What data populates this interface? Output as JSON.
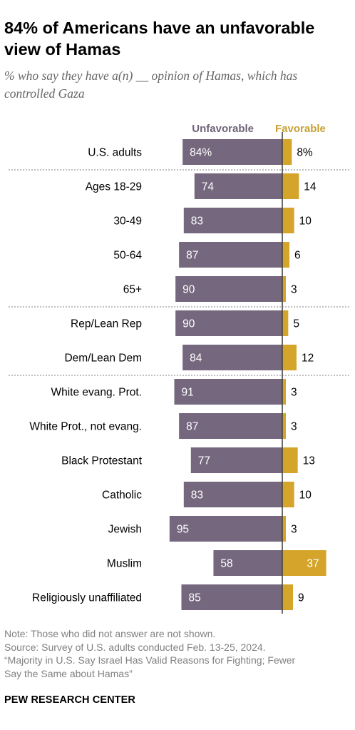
{
  "header": {
    "title": "84% of Americans have an unfavorable view of Hamas",
    "subtitle": "% who say they have a(n) __ opinion of Hamas, which has controlled Gaza"
  },
  "colors": {
    "unfavorable": "#75687e",
    "favorable": "#d4a42b",
    "favorable_header": "#c9a033",
    "unfavorable_header": "#6e6378",
    "axis": "#444444",
    "separator": "#9a9a9a"
  },
  "chart_data": {
    "type": "bar",
    "orientation": "horizontal-diverging",
    "series_headers": {
      "unfavorable": "Unfavorable",
      "favorable": "Favorable"
    },
    "groups": [
      [
        "U.S. adults"
      ],
      [
        "Ages 18-29",
        "30-49",
        "50-64",
        "65+"
      ],
      [
        "Rep/Lean Rep",
        "Dem/Lean Dem"
      ],
      [
        "White evang. Prot.",
        "White Prot., not evang.",
        "Black Protestant",
        "Catholic",
        "Jewish",
        "Muslim",
        "Religiously unaffiliated"
      ]
    ],
    "categories": [
      "U.S. adults",
      "Ages 18-29",
      "30-49",
      "50-64",
      "65+",
      "Rep/Lean Rep",
      "Dem/Lean Dem",
      "White evang. Prot.",
      "White Prot., not evang.",
      "Black Protestant",
      "Catholic",
      "Jewish",
      "Muslim",
      "Religiously unaffiliated"
    ],
    "series": [
      {
        "name": "Unfavorable",
        "values": [
          84,
          74,
          83,
          87,
          90,
          90,
          84,
          91,
          87,
          77,
          83,
          95,
          58,
          85
        ],
        "labels": [
          "84%",
          "74",
          "83",
          "87",
          "90",
          "90",
          "84",
          "91",
          "87",
          "77",
          "83",
          "95",
          "58",
          "85"
        ]
      },
      {
        "name": "Favorable",
        "values": [
          8,
          14,
          10,
          6,
          3,
          5,
          12,
          3,
          3,
          13,
          10,
          3,
          37,
          9
        ],
        "labels": [
          "8%",
          "14",
          "10",
          "6",
          "3",
          "5",
          "12",
          "3",
          "3",
          "13",
          "10",
          "3",
          "37",
          "9"
        ]
      }
    ]
  },
  "footer": {
    "note": "Note: Those who did not answer are not shown.",
    "source_1": "Source: Survey of U.S. adults conducted Feb. 13-25, 2024.",
    "source_2": "“Majority in U.S. Say Israel Has Valid Reasons for Fighting; Fewer",
    "source_3": "Say the Same about Hamas”",
    "brand": "PEW RESEARCH CENTER"
  }
}
